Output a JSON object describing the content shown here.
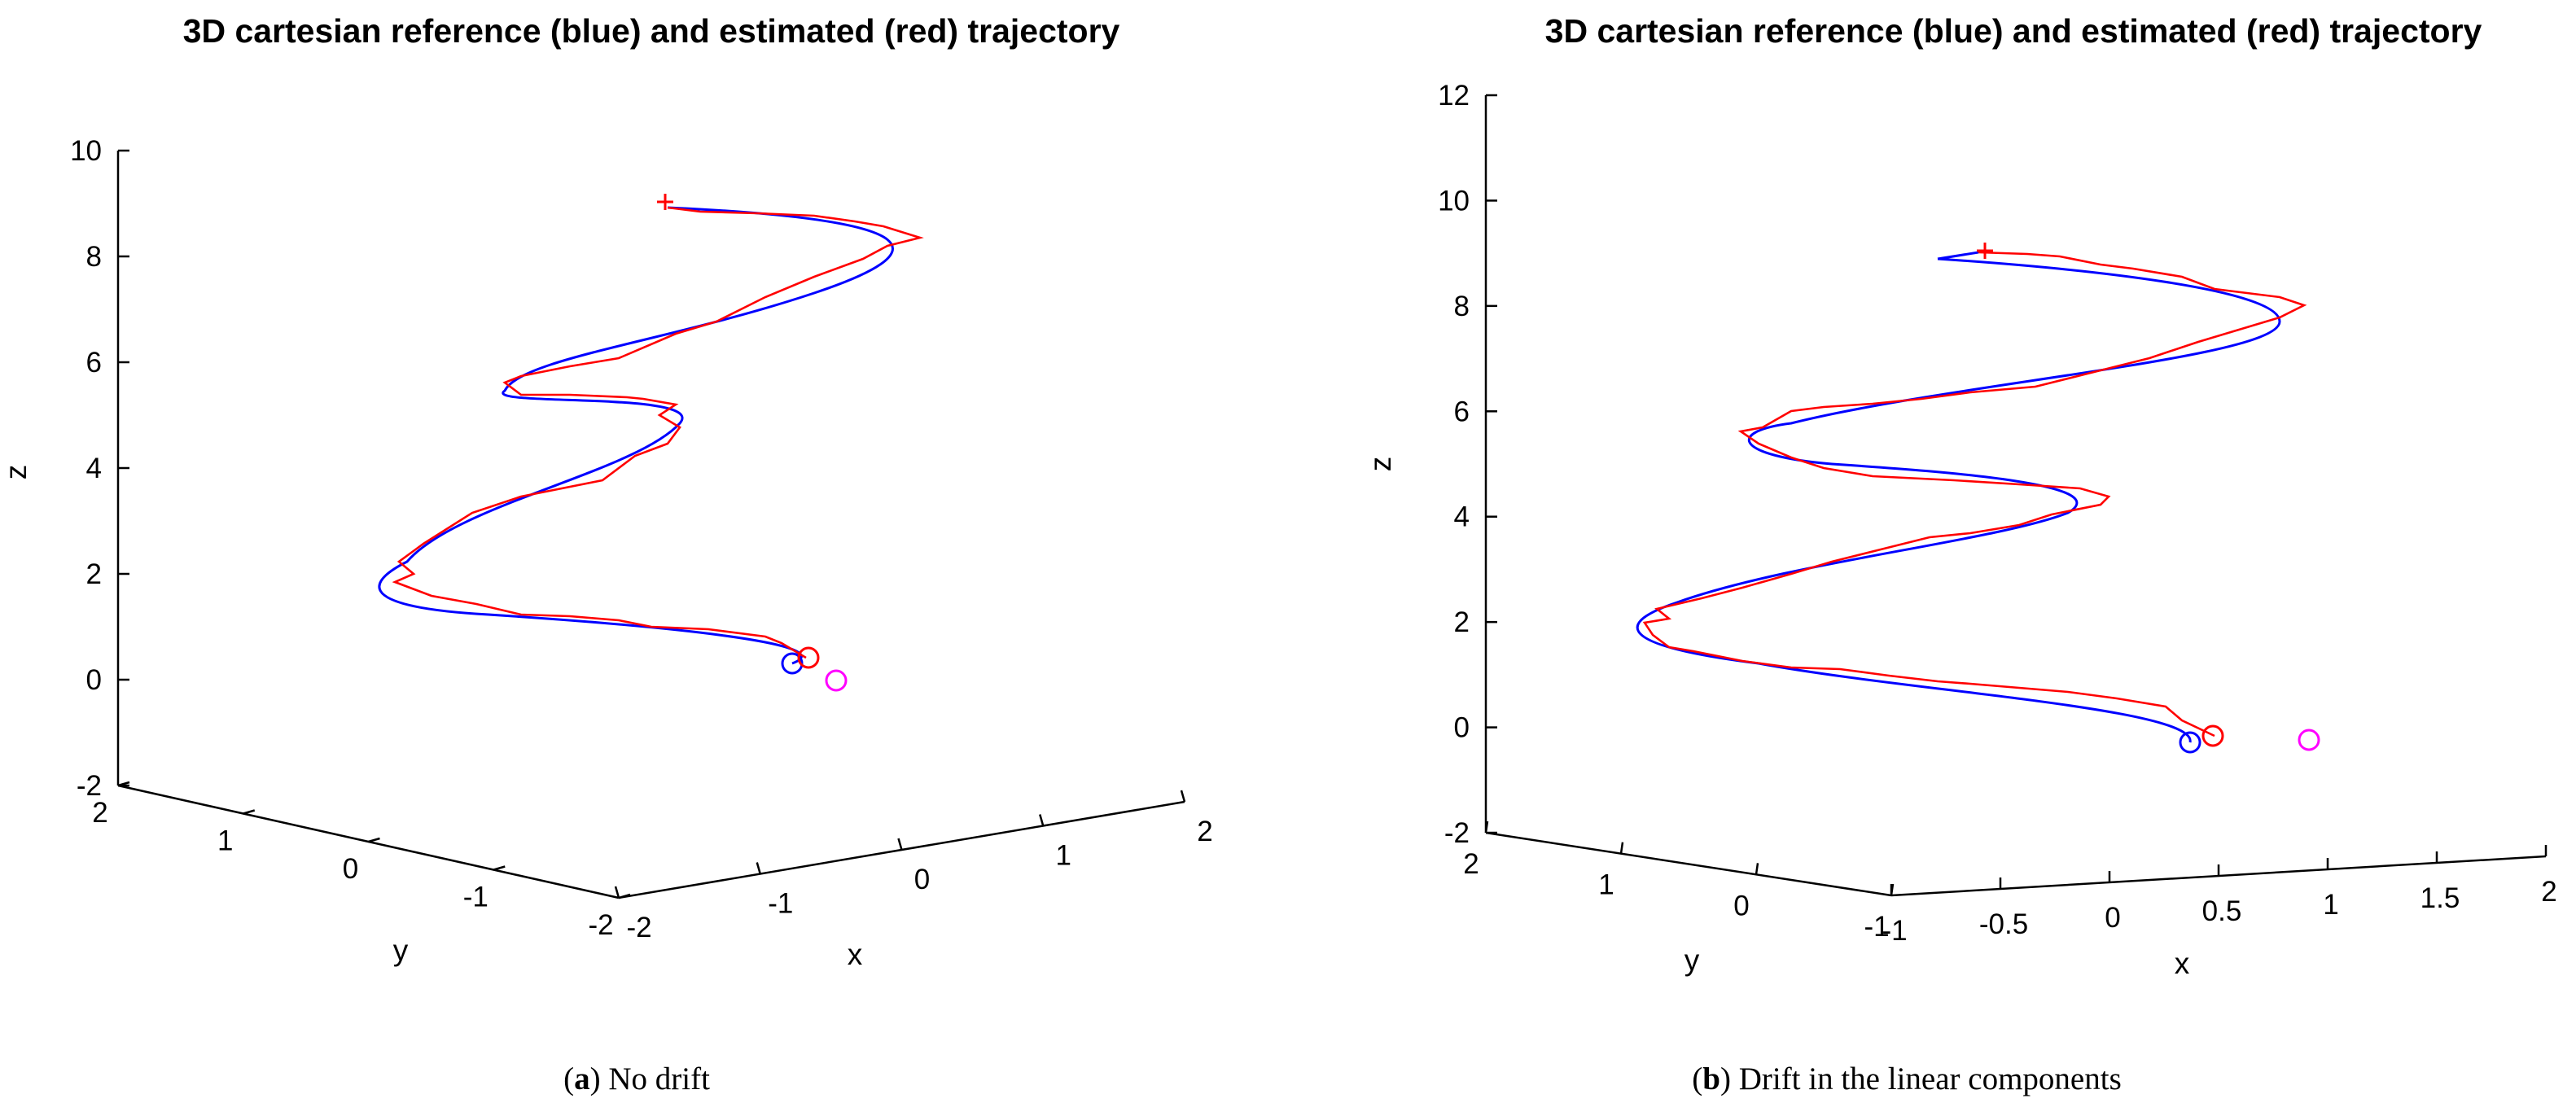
{
  "chart_data": [
    {
      "type": "line",
      "title": "3D cartesian reference (blue) and estimated (red) trajectory",
      "xlabel": "x",
      "ylabel": "y",
      "zlabel": "z",
      "xticks": [
        "-2",
        "-1",
        "0",
        "1",
        "2"
      ],
      "yticks": [
        "2",
        "1",
        "0",
        "-1",
        "-2"
      ],
      "zticks": [
        "-2",
        "0",
        "2",
        "4",
        "6",
        "8",
        "10"
      ],
      "xlim": [
        -2,
        2
      ],
      "ylim": [
        -2,
        2
      ],
      "zlim": [
        -2,
        10
      ],
      "series": [
        {
          "name": "reference",
          "color": "#0000ff"
        },
        {
          "name": "estimated",
          "color": "#ff0000"
        }
      ],
      "markers": [
        {
          "name": "reference-start",
          "shape": "circle",
          "color": "#0000ff"
        },
        {
          "name": "estimated-start",
          "shape": "circle",
          "color": "#ff0000"
        },
        {
          "name": "origin",
          "shape": "circle",
          "color": "#ff00ff"
        },
        {
          "name": "estimated-end",
          "shape": "plus",
          "color": "#ff0000"
        }
      ],
      "caption_letter": "a",
      "caption_text": " No drift"
    },
    {
      "type": "line",
      "title": "3D cartesian reference (blue) and estimated (red) trajectory",
      "xlabel": "x",
      "ylabel": "y",
      "zlabel": "z",
      "xticks": [
        "-1",
        "-0.5",
        "0",
        "0.5",
        "1",
        "1.5",
        "2"
      ],
      "yticks": [
        "2",
        "1",
        "0",
        "-1"
      ],
      "zticks": [
        "-2",
        "0",
        "2",
        "4",
        "6",
        "8",
        "10",
        "12"
      ],
      "xlim": [
        -1,
        2
      ],
      "ylim": [
        -1,
        2
      ],
      "zlim": [
        -2,
        12
      ],
      "series": [
        {
          "name": "reference",
          "color": "#0000ff"
        },
        {
          "name": "estimated",
          "color": "#ff0000"
        }
      ],
      "markers": [
        {
          "name": "reference-start",
          "shape": "circle",
          "color": "#0000ff"
        },
        {
          "name": "estimated-start",
          "shape": "circle",
          "color": "#ff0000"
        },
        {
          "name": "origin",
          "shape": "circle",
          "color": "#ff00ff"
        },
        {
          "name": "estimated-end",
          "shape": "plus",
          "color": "#ff0000"
        }
      ],
      "caption_letter": "b",
      "caption_text": " Drift in the linear components"
    }
  ]
}
